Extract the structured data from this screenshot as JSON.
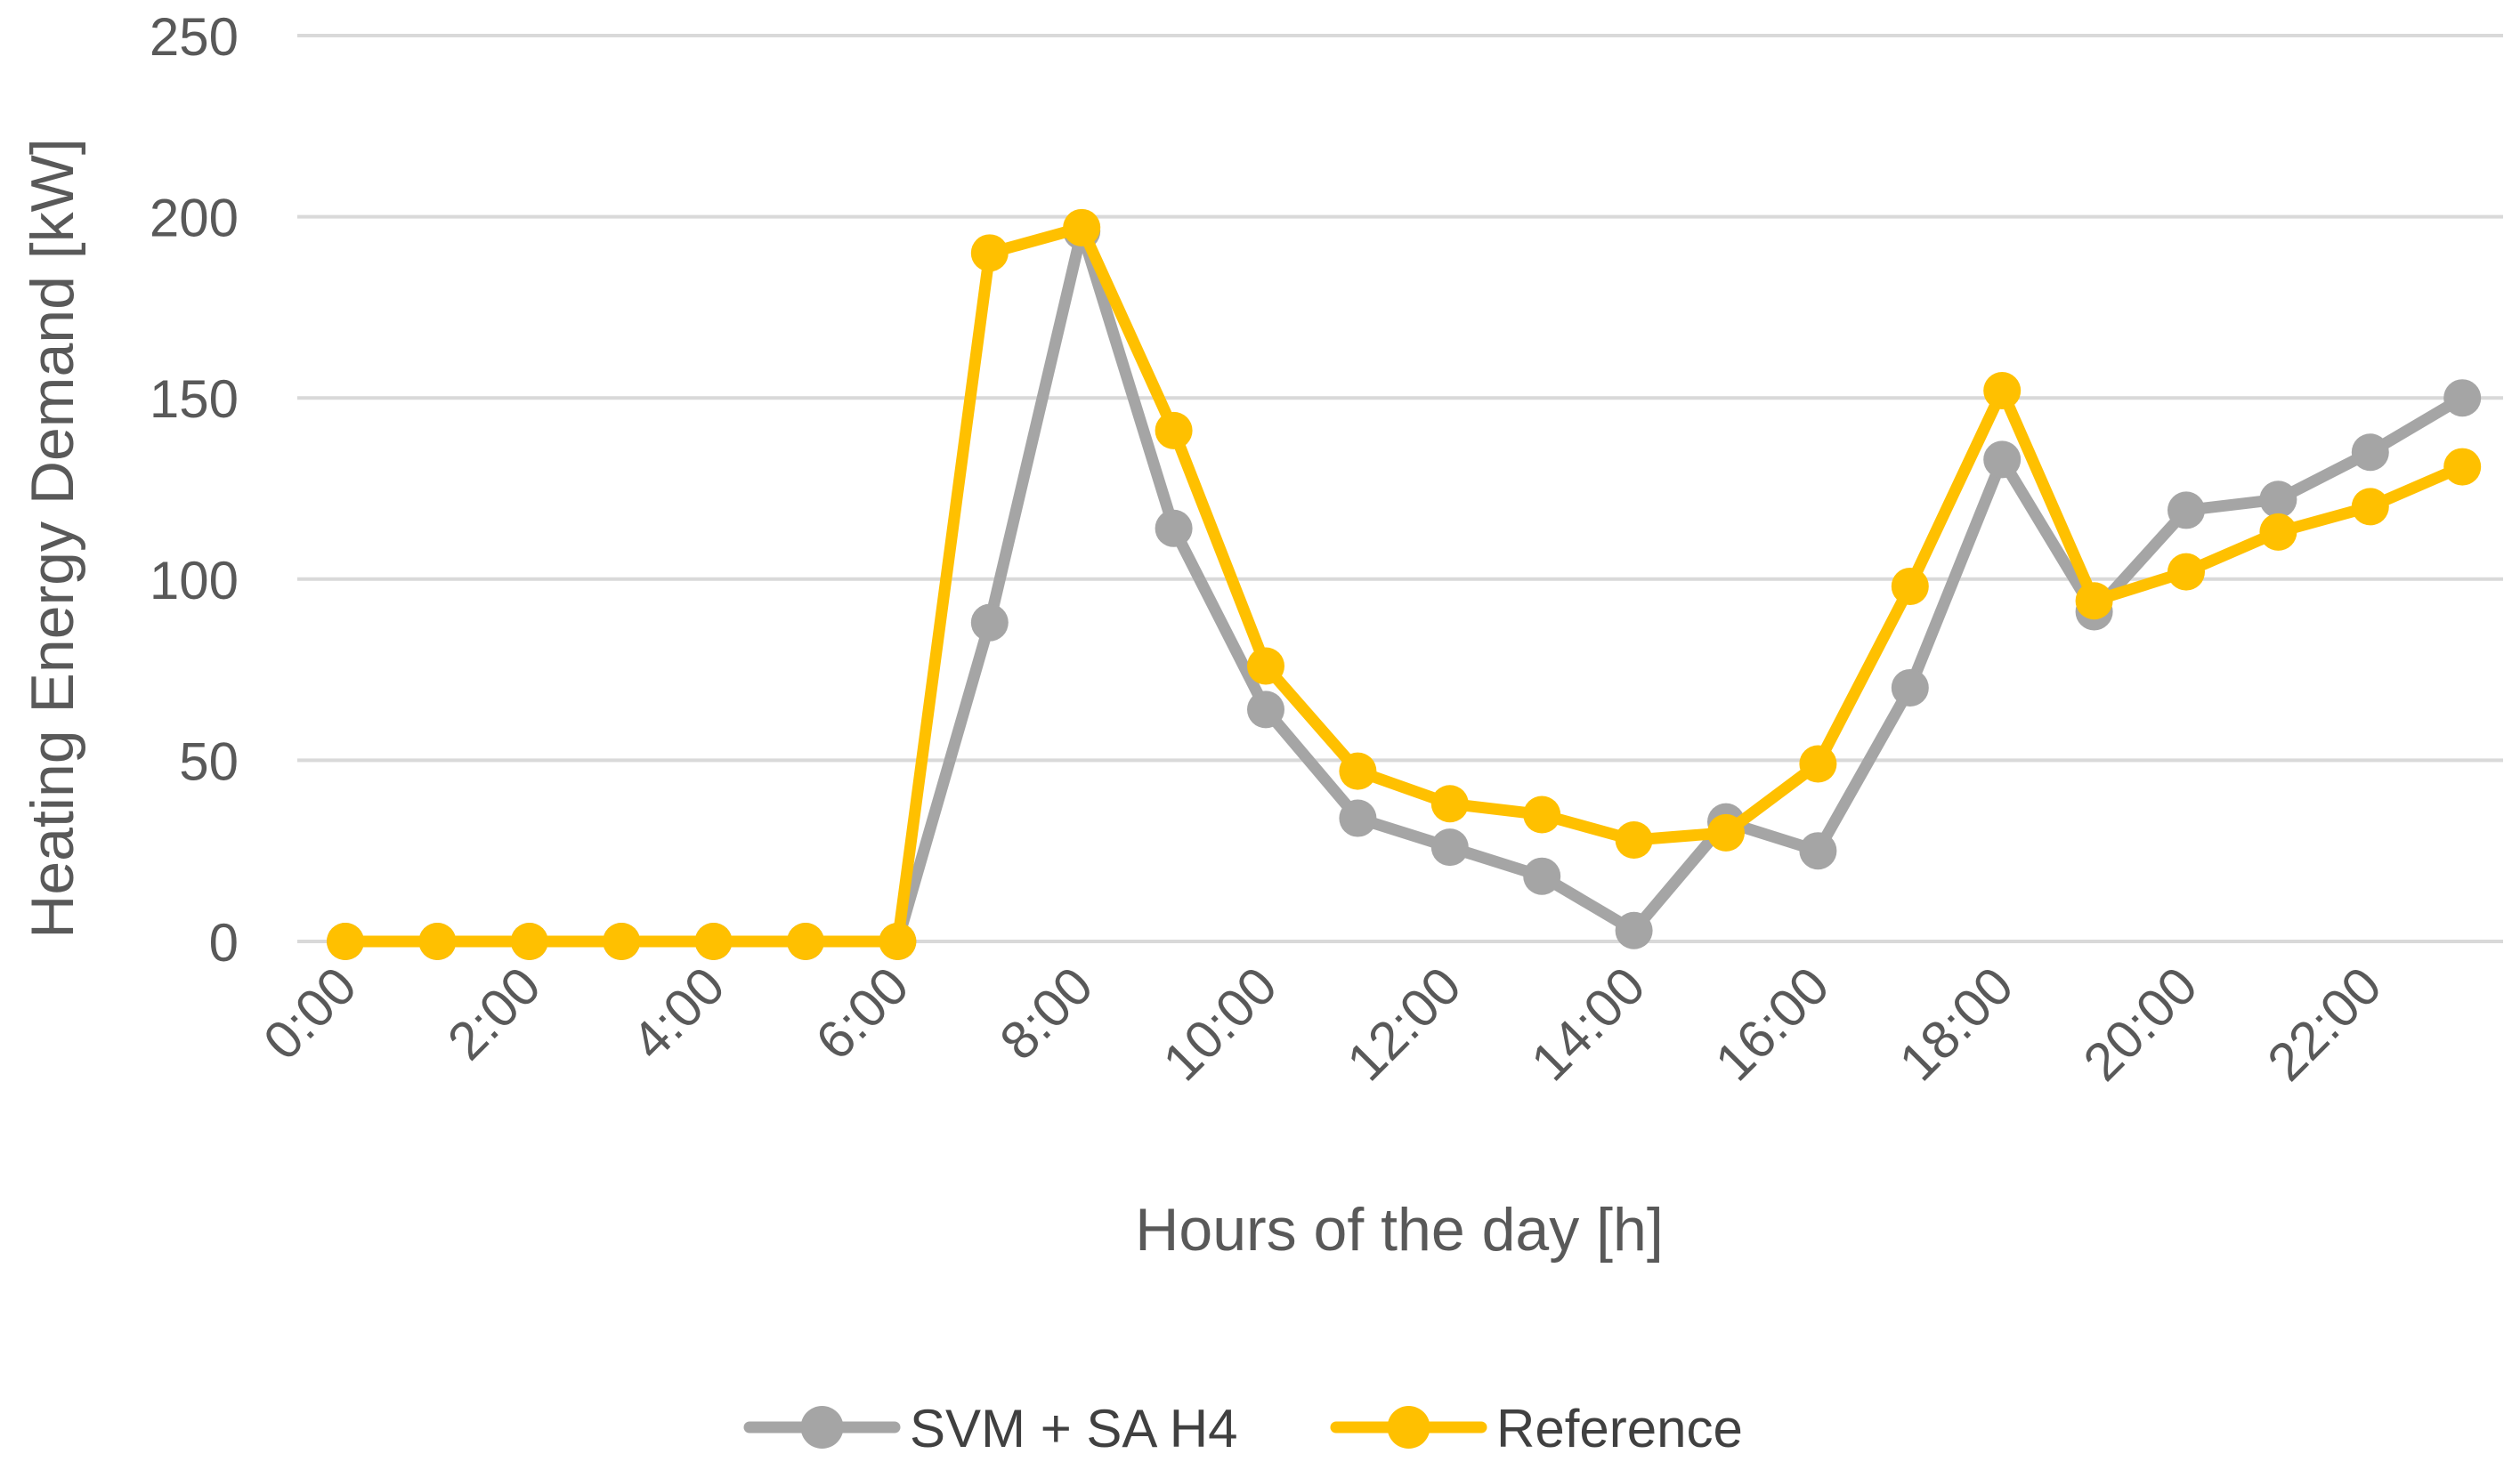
{
  "chart_data": {
    "type": "line",
    "title": "",
    "xlabel": "Hours of the day [h]",
    "ylabel": "Heating Energy Demand [kW]",
    "ylim": [
      0,
      250
    ],
    "yticks": [
      "0",
      "50",
      "100",
      "150",
      "200",
      "250"
    ],
    "x": [
      0,
      1,
      2,
      3,
      4,
      5,
      6,
      7,
      8,
      9,
      10,
      11,
      12,
      13,
      14,
      15,
      16,
      17,
      18,
      19,
      20,
      21,
      22,
      23
    ],
    "xtick_labels": [
      "0:00",
      "2:00",
      "4:00",
      "6:00",
      "8:00",
      "10:00",
      "12:00",
      "14:00",
      "16:00",
      "18:00",
      "20:00",
      "22:00"
    ],
    "grid": true,
    "legend_position": "bottom",
    "series": [
      {
        "name": "SVM + SA H4",
        "color": "#A5A5A5",
        "values": [
          0,
          0,
          0,
          0,
          0,
          0,
          0,
          88,
          196,
          114,
          64,
          34,
          26,
          18,
          3,
          33,
          25,
          70,
          133,
          91,
          119,
          122,
          135,
          150
        ]
      },
      {
        "name": "Reference",
        "color": "#FFC000",
        "values": [
          0,
          0,
          0,
          0,
          0,
          0,
          0,
          190,
          197,
          141,
          76,
          47,
          38,
          35,
          28,
          30,
          49,
          98,
          152,
          94,
          102,
          113,
          120,
          131
        ]
      }
    ]
  }
}
